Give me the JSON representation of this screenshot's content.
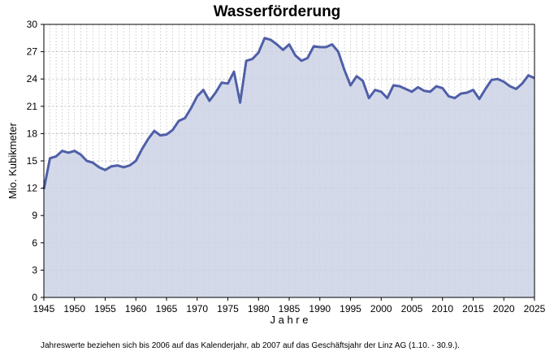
{
  "title": "Wasserförderung",
  "footnote": "Jahreswerte beziehen sich bis 2006 auf das Kalenderjahr, ab 2007 auf das Geschäftsjahr der Linz AG (1.10. - 30.9.).",
  "colors": {
    "line": "#4f5fa8",
    "fill": "#cdd2e6",
    "grid": "#bdbdbd"
  },
  "chart_data": {
    "type": "area",
    "title": "Wasserförderung",
    "xlabel": "J a h r e",
    "ylabel": "Mio. Kubikmeter",
    "xlim": [
      1945,
      2025
    ],
    "ylim": [
      0,
      30
    ],
    "xticks": [
      1945,
      1950,
      1955,
      1960,
      1965,
      1970,
      1975,
      1980,
      1985,
      1990,
      1995,
      2000,
      2005,
      2010,
      2015,
      2020,
      2025
    ],
    "yticks": [
      0,
      3,
      6,
      9,
      12,
      15,
      18,
      21,
      24,
      27,
      30
    ],
    "grid": {
      "x_minor_step": 1,
      "y_step": 3,
      "style": "dashed"
    },
    "series": [
      {
        "x": [
          1945,
          1946,
          1947,
          1948,
          1949,
          1950,
          1951,
          1952,
          1953,
          1954,
          1955,
          1956,
          1957,
          1958,
          1959,
          1960,
          1961,
          1962,
          1963,
          1964,
          1965,
          1966,
          1967,
          1968,
          1969,
          1970,
          1971,
          1972,
          1973,
          1974,
          1975,
          1976,
          1977,
          1978,
          1979,
          1980,
          1981,
          1982,
          1983,
          1984,
          1985,
          1986,
          1987,
          1988,
          1989,
          1990,
          1991,
          1992,
          1993,
          1994,
          1995,
          1996,
          1997,
          1998,
          1999,
          2000,
          2001,
          2002,
          2003,
          2004,
          2005,
          2006,
          2007,
          2008,
          2009,
          2010,
          2011,
          2012,
          2013,
          2014,
          2015,
          2016,
          2017,
          2018,
          2019,
          2020,
          2021,
          2022,
          2023,
          2024,
          2025
        ],
        "y": [
          11.9,
          15.3,
          15.5,
          16.1,
          15.9,
          16.1,
          15.7,
          15.0,
          14.8,
          14.3,
          14.0,
          14.4,
          14.5,
          14.3,
          14.5,
          15.0,
          16.3,
          17.4,
          18.3,
          17.8,
          17.9,
          18.4,
          19.4,
          19.7,
          20.8,
          22.1,
          22.8,
          21.6,
          22.5,
          23.6,
          23.5,
          24.8,
          21.4,
          26.0,
          26.2,
          26.9,
          28.5,
          28.3,
          27.8,
          27.2,
          27.8,
          26.6,
          26.0,
          26.3,
          27.6,
          27.5,
          27.5,
          27.8,
          27.0,
          25.0,
          23.3,
          24.3,
          23.8,
          21.9,
          22.8,
          22.6,
          21.9,
          23.3,
          23.2,
          22.9,
          22.6,
          23.1,
          22.7,
          22.6,
          23.2,
          23.0,
          22.1,
          21.9,
          22.4,
          22.5,
          22.8,
          21.8,
          22.9,
          23.9,
          24.0,
          23.7,
          23.2,
          22.9,
          23.5,
          24.4,
          24.1
        ]
      }
    ]
  }
}
